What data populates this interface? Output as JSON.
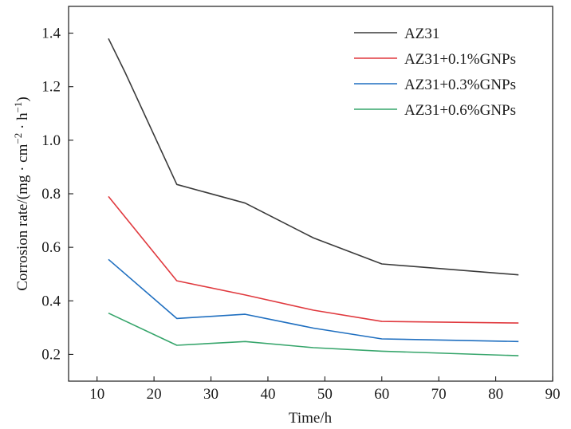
{
  "chart_data": {
    "type": "line",
    "title": "",
    "xlabel": "Time/h",
    "ylabel_main": "Corrosion rate/(mg · cm",
    "ylabel_sup1": "−2",
    "ylabel_mid": " · h",
    "ylabel_sup2": "−1",
    "ylabel_end": ")",
    "xlim": [
      5,
      90
    ],
    "ylim": [
      0.1,
      1.5
    ],
    "xticks": [
      10,
      20,
      30,
      40,
      50,
      60,
      70,
      80,
      90
    ],
    "yticks": [
      0.2,
      0.4,
      0.6,
      0.8,
      1.0,
      1.2,
      1.4
    ],
    "ytick_labels": [
      "0.2",
      "0.4",
      "0.6",
      "0.8",
      "1.0",
      "1.2",
      "1.4"
    ],
    "grid": false,
    "legend_position": "top-right",
    "series": [
      {
        "name": "AZ31",
        "color": "#3a3a3a",
        "x": [
          12,
          15,
          24,
          36,
          48,
          60,
          84
        ],
        "y": [
          1.38,
          1.25,
          0.835,
          0.765,
          0.635,
          0.538,
          0.497
        ]
      },
      {
        "name": "AZ31+0.1%GNPs",
        "color": "#e0393e",
        "x": [
          12,
          24,
          36,
          48,
          60,
          84
        ],
        "y": [
          0.79,
          0.475,
          0.422,
          0.365,
          0.323,
          0.317
        ]
      },
      {
        "name": "AZ31+0.3%GNPs",
        "color": "#1f6fc0",
        "x": [
          12,
          24,
          36,
          48,
          60,
          84
        ],
        "y": [
          0.555,
          0.334,
          0.35,
          0.298,
          0.258,
          0.248
        ]
      },
      {
        "name": "AZ31+0.6%GNPs",
        "color": "#36a56b",
        "x": [
          12,
          24,
          36,
          48,
          60,
          84
        ],
        "y": [
          0.354,
          0.234,
          0.248,
          0.225,
          0.212,
          0.195
        ]
      }
    ]
  }
}
